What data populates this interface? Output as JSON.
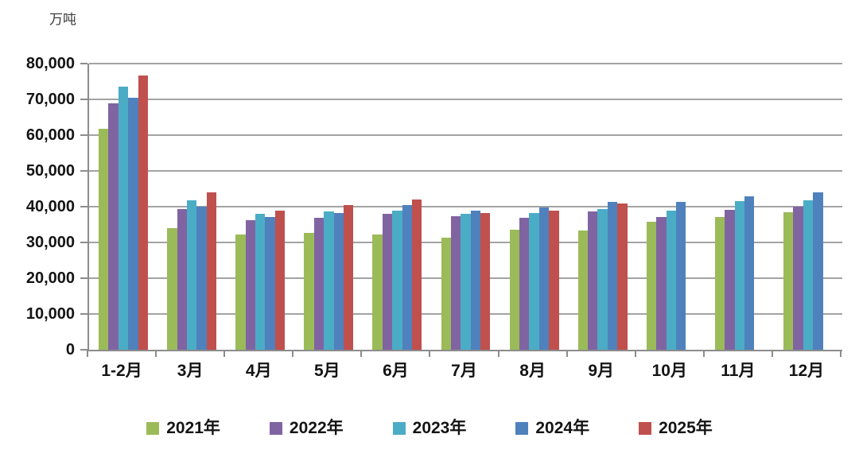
{
  "chart_data": {
    "type": "bar",
    "title": "",
    "unit_label": "万吨",
    "xlabel": "",
    "ylabel": "万吨",
    "ylim": [
      0,
      80000
    ],
    "ytick_step": 10000,
    "grid": true,
    "legend_position": "bottom",
    "categories": [
      "1-2月",
      "3月",
      "4月",
      "5月",
      "6月",
      "7月",
      "8月",
      "9月",
      "10月",
      "11月",
      "12月"
    ],
    "series": [
      {
        "name": "2021年",
        "color": "#9BBB59",
        "values": [
          61800,
          34000,
          32200,
          32700,
          32300,
          31400,
          33500,
          33400,
          35700,
          37100,
          38500
        ]
      },
      {
        "name": "2022年",
        "color": "#8064A2",
        "values": [
          68900,
          39400,
          36200,
          36800,
          37900,
          37300,
          37000,
          38600,
          37100,
          39100,
          40000
        ]
      },
      {
        "name": "2023年",
        "color": "#4BACC6",
        "values": [
          73500,
          41700,
          38100,
          38600,
          39000,
          37900,
          38200,
          39300,
          38800,
          41500,
          41700
        ]
      },
      {
        "name": "2024年",
        "color": "#4F81BD",
        "values": [
          70500,
          40000,
          37100,
          38300,
          40500,
          39000,
          39700,
          41400,
          41300,
          42800,
          43900
        ]
      },
      {
        "name": "2025年",
        "color": "#C0504D",
        "values": [
          76700,
          44100,
          38900,
          40500,
          42100,
          38200,
          39000,
          41000,
          null,
          null,
          null
        ]
      }
    ]
  }
}
